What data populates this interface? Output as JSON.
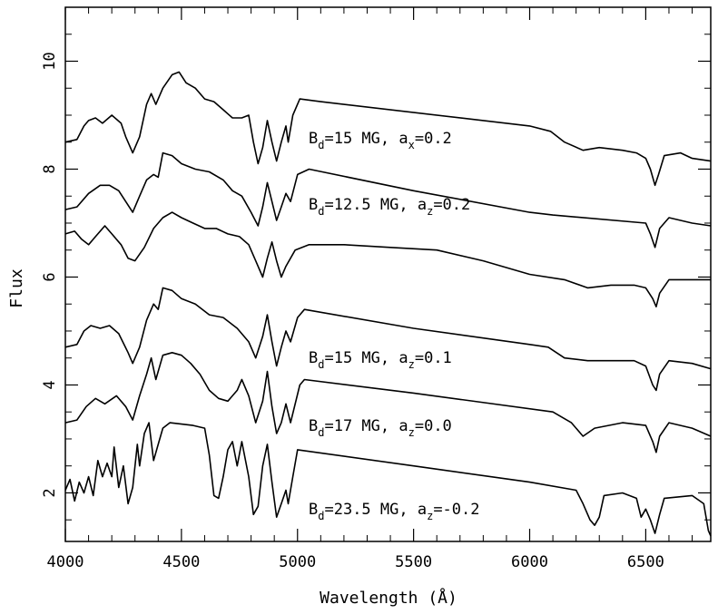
{
  "chart_data": {
    "type": "line",
    "xlabel": "Wavelength (Å)",
    "ylabel": "Flux",
    "xlim": [
      4000,
      6780
    ],
    "ylim": [
      1.1,
      11.0
    ],
    "xticks": [
      "4000",
      "4500",
      "5000",
      "5500",
      "6000",
      "6500"
    ],
    "yticks": [
      "2",
      "4",
      "6",
      "8",
      "10"
    ],
    "grid": false,
    "series": [
      {
        "annotation": {
          "text": "B",
          "sub1": "d",
          "mid": "=15 MG, a",
          "sub2": "x",
          "tail": "=0.2"
        },
        "points": [
          [
            4000,
            8.5
          ],
          [
            4050,
            8.55
          ],
          [
            4080,
            8.8
          ],
          [
            4100,
            8.9
          ],
          [
            4130,
            8.95
          ],
          [
            4160,
            8.85
          ],
          [
            4200,
            9.0
          ],
          [
            4240,
            8.85
          ],
          [
            4260,
            8.6
          ],
          [
            4290,
            8.3
          ],
          [
            4320,
            8.6
          ],
          [
            4350,
            9.2
          ],
          [
            4370,
            9.4
          ],
          [
            4390,
            9.2
          ],
          [
            4420,
            9.5
          ],
          [
            4460,
            9.75
          ],
          [
            4490,
            9.8
          ],
          [
            4520,
            9.6
          ],
          [
            4560,
            9.5
          ],
          [
            4600,
            9.3
          ],
          [
            4640,
            9.25
          ],
          [
            4680,
            9.1
          ],
          [
            4720,
            8.95
          ],
          [
            4760,
            8.95
          ],
          [
            4790,
            9.0
          ],
          [
            4810,
            8.5
          ],
          [
            4830,
            8.1
          ],
          [
            4850,
            8.4
          ],
          [
            4870,
            8.9
          ],
          [
            4890,
            8.5
          ],
          [
            4910,
            8.15
          ],
          [
            4930,
            8.5
          ],
          [
            4950,
            8.8
          ],
          [
            4960,
            8.5
          ],
          [
            4980,
            9.0
          ],
          [
            5010,
            9.3
          ],
          [
            5100,
            9.25
          ],
          [
            6000,
            8.8
          ],
          [
            6090,
            8.7
          ],
          [
            6150,
            8.5
          ],
          [
            6230,
            8.35
          ],
          [
            6300,
            8.4
          ],
          [
            6400,
            8.35
          ],
          [
            6460,
            8.3
          ],
          [
            6500,
            8.2
          ],
          [
            6520,
            8.0
          ],
          [
            6540,
            7.7
          ],
          [
            6555,
            7.9
          ],
          [
            6580,
            8.25
          ],
          [
            6650,
            8.3
          ],
          [
            6700,
            8.2
          ],
          [
            6780,
            8.15
          ]
        ]
      },
      {
        "annotation": {
          "text": "B",
          "sub1": "d",
          "mid": "=12.5 MG, a",
          "sub2": "z",
          "tail": "=0.2"
        },
        "points": [
          [
            4000,
            7.25
          ],
          [
            4050,
            7.3
          ],
          [
            4100,
            7.55
          ],
          [
            4150,
            7.7
          ],
          [
            4190,
            7.7
          ],
          [
            4230,
            7.6
          ],
          [
            4260,
            7.4
          ],
          [
            4290,
            7.2
          ],
          [
            4320,
            7.5
          ],
          [
            4350,
            7.8
          ],
          [
            4380,
            7.9
          ],
          [
            4400,
            7.85
          ],
          [
            4420,
            8.3
          ],
          [
            4460,
            8.25
          ],
          [
            4500,
            8.1
          ],
          [
            4560,
            8.0
          ],
          [
            4620,
            7.95
          ],
          [
            4680,
            7.8
          ],
          [
            4720,
            7.6
          ],
          [
            4760,
            7.5
          ],
          [
            4800,
            7.2
          ],
          [
            4830,
            6.95
          ],
          [
            4850,
            7.3
          ],
          [
            4870,
            7.75
          ],
          [
            4890,
            7.4
          ],
          [
            4910,
            7.05
          ],
          [
            4930,
            7.3
          ],
          [
            4950,
            7.55
          ],
          [
            4970,
            7.4
          ],
          [
            5000,
            7.9
          ],
          [
            5050,
            8.0
          ],
          [
            5500,
            7.6
          ],
          [
            6000,
            7.2
          ],
          [
            6100,
            7.15
          ],
          [
            6500,
            7.0
          ],
          [
            6520,
            6.8
          ],
          [
            6540,
            6.55
          ],
          [
            6560,
            6.9
          ],
          [
            6600,
            7.1
          ],
          [
            6700,
            7.0
          ],
          [
            6780,
            6.95
          ]
        ]
      },
      {
        "annotation": null,
        "points": [
          [
            4000,
            6.8
          ],
          [
            4040,
            6.85
          ],
          [
            4070,
            6.7
          ],
          [
            4100,
            6.6
          ],
          [
            4130,
            6.75
          ],
          [
            4170,
            6.95
          ],
          [
            4200,
            6.8
          ],
          [
            4240,
            6.6
          ],
          [
            4270,
            6.35
          ],
          [
            4300,
            6.3
          ],
          [
            4340,
            6.55
          ],
          [
            4380,
            6.9
          ],
          [
            4420,
            7.1
          ],
          [
            4460,
            7.2
          ],
          [
            4500,
            7.1
          ],
          [
            4550,
            7.0
          ],
          [
            4600,
            6.9
          ],
          [
            4650,
            6.9
          ],
          [
            4700,
            6.8
          ],
          [
            4750,
            6.75
          ],
          [
            4790,
            6.6
          ],
          [
            4820,
            6.3
          ],
          [
            4850,
            6.0
          ],
          [
            4870,
            6.35
          ],
          [
            4890,
            6.65
          ],
          [
            4910,
            6.3
          ],
          [
            4930,
            6.0
          ],
          [
            4950,
            6.2
          ],
          [
            4990,
            6.5
          ],
          [
            5050,
            6.6
          ],
          [
            5200,
            6.6
          ],
          [
            5400,
            6.55
          ],
          [
            5600,
            6.5
          ],
          [
            5800,
            6.3
          ],
          [
            6000,
            6.05
          ],
          [
            6150,
            5.95
          ],
          [
            6250,
            5.8
          ],
          [
            6350,
            5.85
          ],
          [
            6450,
            5.85
          ],
          [
            6500,
            5.8
          ],
          [
            6530,
            5.6
          ],
          [
            6545,
            5.45
          ],
          [
            6560,
            5.7
          ],
          [
            6600,
            5.95
          ],
          [
            6700,
            5.95
          ],
          [
            6780,
            5.95
          ]
        ]
      },
      {
        "annotation": {
          "text": "B",
          "sub1": "d",
          "mid": "=15 MG, a",
          "sub2": "z",
          "tail": "=0.1"
        },
        "points": [
          [
            4000,
            4.7
          ],
          [
            4050,
            4.75
          ],
          [
            4080,
            5.0
          ],
          [
            4110,
            5.1
          ],
          [
            4150,
            5.05
          ],
          [
            4190,
            5.1
          ],
          [
            4230,
            4.95
          ],
          [
            4270,
            4.6
          ],
          [
            4290,
            4.4
          ],
          [
            4320,
            4.7
          ],
          [
            4350,
            5.2
          ],
          [
            4380,
            5.5
          ],
          [
            4400,
            5.4
          ],
          [
            4420,
            5.8
          ],
          [
            4460,
            5.75
          ],
          [
            4500,
            5.6
          ],
          [
            4560,
            5.5
          ],
          [
            4620,
            5.3
          ],
          [
            4680,
            5.25
          ],
          [
            4740,
            5.05
          ],
          [
            4790,
            4.8
          ],
          [
            4820,
            4.5
          ],
          [
            4850,
            4.9
          ],
          [
            4870,
            5.3
          ],
          [
            4890,
            4.8
          ],
          [
            4910,
            4.35
          ],
          [
            4930,
            4.7
          ],
          [
            4950,
            5.0
          ],
          [
            4970,
            4.8
          ],
          [
            5000,
            5.25
          ],
          [
            5030,
            5.4
          ],
          [
            5500,
            5.05
          ],
          [
            6000,
            4.75
          ],
          [
            6080,
            4.7
          ],
          [
            6150,
            4.5
          ],
          [
            6250,
            4.45
          ],
          [
            6450,
            4.45
          ],
          [
            6500,
            4.35
          ],
          [
            6530,
            4.0
          ],
          [
            6545,
            3.9
          ],
          [
            6560,
            4.2
          ],
          [
            6600,
            4.45
          ],
          [
            6700,
            4.4
          ],
          [
            6780,
            4.3
          ]
        ]
      },
      {
        "annotation": {
          "text": "B",
          "sub1": "d",
          "mid": "=17 MG, a",
          "sub2": "z",
          "tail": "=0.0"
        },
        "points": [
          [
            4000,
            3.3
          ],
          [
            4050,
            3.35
          ],
          [
            4090,
            3.6
          ],
          [
            4130,
            3.75
          ],
          [
            4170,
            3.65
          ],
          [
            4220,
            3.8
          ],
          [
            4260,
            3.6
          ],
          [
            4290,
            3.35
          ],
          [
            4320,
            3.8
          ],
          [
            4350,
            4.2
          ],
          [
            4370,
            4.5
          ],
          [
            4390,
            4.1
          ],
          [
            4420,
            4.55
          ],
          [
            4460,
            4.6
          ],
          [
            4500,
            4.55
          ],
          [
            4540,
            4.4
          ],
          [
            4580,
            4.2
          ],
          [
            4620,
            3.9
          ],
          [
            4660,
            3.75
          ],
          [
            4700,
            3.7
          ],
          [
            4740,
            3.9
          ],
          [
            4760,
            4.1
          ],
          [
            4790,
            3.8
          ],
          [
            4820,
            3.3
          ],
          [
            4850,
            3.7
          ],
          [
            4870,
            4.25
          ],
          [
            4890,
            3.6
          ],
          [
            4910,
            3.1
          ],
          [
            4930,
            3.3
          ],
          [
            4950,
            3.65
          ],
          [
            4970,
            3.3
          ],
          [
            5010,
            4.0
          ],
          [
            5030,
            4.1
          ],
          [
            5500,
            3.85
          ],
          [
            6100,
            3.5
          ],
          [
            6180,
            3.3
          ],
          [
            6230,
            3.05
          ],
          [
            6280,
            3.2
          ],
          [
            6400,
            3.3
          ],
          [
            6500,
            3.25
          ],
          [
            6530,
            2.95
          ],
          [
            6545,
            2.75
          ],
          [
            6560,
            3.05
          ],
          [
            6600,
            3.3
          ],
          [
            6700,
            3.2
          ],
          [
            6780,
            3.05
          ]
        ]
      },
      {
        "annotation": {
          "text": "B",
          "sub1": "d",
          "mid": "=23.5 MG, a",
          "sub2": "z",
          "tail": "=-0.2"
        },
        "points": [
          [
            4000,
            2.05
          ],
          [
            4020,
            2.25
          ],
          [
            4040,
            1.85
          ],
          [
            4060,
            2.2
          ],
          [
            4080,
            2.0
          ],
          [
            4100,
            2.3
          ],
          [
            4120,
            1.95
          ],
          [
            4140,
            2.6
          ],
          [
            4160,
            2.3
          ],
          [
            4180,
            2.55
          ],
          [
            4200,
            2.3
          ],
          [
            4210,
            2.85
          ],
          [
            4230,
            2.1
          ],
          [
            4250,
            2.5
          ],
          [
            4270,
            1.8
          ],
          [
            4290,
            2.1
          ],
          [
            4310,
            2.9
          ],
          [
            4320,
            2.5
          ],
          [
            4340,
            3.1
          ],
          [
            4360,
            3.3
          ],
          [
            4380,
            2.6
          ],
          [
            4400,
            2.9
          ],
          [
            4420,
            3.2
          ],
          [
            4450,
            3.3
          ],
          [
            4550,
            3.25
          ],
          [
            4600,
            3.2
          ],
          [
            4620,
            2.7
          ],
          [
            4640,
            1.95
          ],
          [
            4660,
            1.9
          ],
          [
            4680,
            2.3
          ],
          [
            4700,
            2.8
          ],
          [
            4720,
            2.95
          ],
          [
            4740,
            2.5
          ],
          [
            4760,
            2.95
          ],
          [
            4790,
            2.3
          ],
          [
            4810,
            1.6
          ],
          [
            4830,
            1.75
          ],
          [
            4850,
            2.5
          ],
          [
            4870,
            2.9
          ],
          [
            4890,
            2.2
          ],
          [
            4910,
            1.55
          ],
          [
            4930,
            1.8
          ],
          [
            4950,
            2.05
          ],
          [
            4960,
            1.8
          ],
          [
            4980,
            2.3
          ],
          [
            5000,
            2.8
          ],
          [
            5500,
            2.5
          ],
          [
            6000,
            2.2
          ],
          [
            6200,
            2.05
          ],
          [
            6230,
            1.8
          ],
          [
            6260,
            1.5
          ],
          [
            6280,
            1.4
          ],
          [
            6300,
            1.55
          ],
          [
            6320,
            1.95
          ],
          [
            6400,
            2.0
          ],
          [
            6460,
            1.9
          ],
          [
            6480,
            1.55
          ],
          [
            6500,
            1.7
          ],
          [
            6520,
            1.5
          ],
          [
            6540,
            1.25
          ],
          [
            6560,
            1.6
          ],
          [
            6580,
            1.9
          ],
          [
            6700,
            1.95
          ],
          [
            6750,
            1.8
          ],
          [
            6770,
            1.3
          ],
          [
            6780,
            1.2
          ]
        ]
      }
    ]
  }
}
